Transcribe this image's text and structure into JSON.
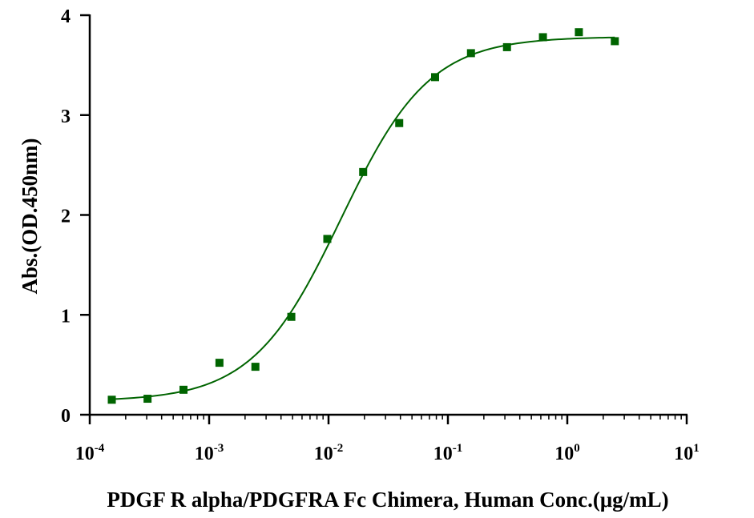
{
  "chart_data": {
    "type": "scatter",
    "xlabel": "PDGF R alpha/PDGFRA Fc Chimera, Human Conc.(μg/mL)",
    "ylabel": "Abs.(OD.450nm)",
    "x_scale": "log",
    "xlim": [
      0.0001,
      10
    ],
    "ylim": [
      0,
      4
    ],
    "grid": false,
    "x_ticks": [
      {
        "base": "10",
        "exp": "-4"
      },
      {
        "base": "10",
        "exp": "-3"
      },
      {
        "base": "10",
        "exp": "-2"
      },
      {
        "base": "10",
        "exp": "-1"
      },
      {
        "base": "10",
        "exp": "0"
      },
      {
        "base": "10",
        "exp": "1"
      }
    ],
    "y_ticks": [
      "0",
      "1",
      "2",
      "3",
      "4"
    ],
    "colors": {
      "series": "#006400"
    },
    "series": [
      {
        "marker": "square",
        "fit_curve": "sigmoidal",
        "x": [
          0.000153,
          0.000305,
          0.00061,
          0.00122,
          0.00244,
          0.00488,
          0.00977,
          0.0195,
          0.0391,
          0.0781,
          0.156,
          0.3125,
          0.625,
          1.25,
          2.5
        ],
        "y": [
          0.15,
          0.16,
          0.25,
          0.52,
          0.48,
          0.98,
          1.76,
          2.43,
          2.92,
          3.38,
          3.62,
          3.68,
          3.78,
          3.83,
          3.74
        ]
      }
    ]
  }
}
